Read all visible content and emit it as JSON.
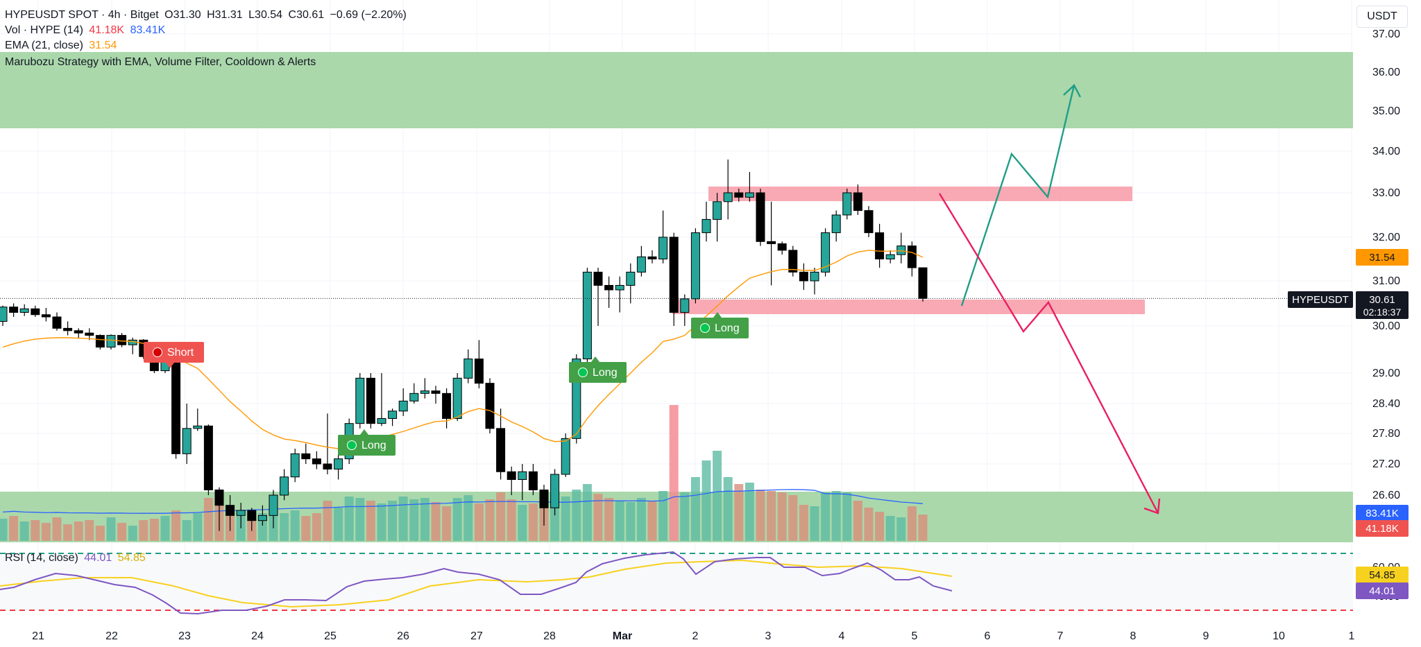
{
  "header": {
    "symbol": "HYPEUSDT SPOT · 4h · Bitget",
    "open": "O31.30",
    "high": "H31.31",
    "low": "L30.54",
    "close": "C30.61",
    "change": "−0.69 (−2.20%)",
    "vol_label": "Vol · HYPE (14)",
    "vol_value": "41.18K",
    "vol_ma": "83.41K",
    "ema_label": "EMA (21, close)",
    "ema_value": "31.54",
    "strategy_label": "Marubozu Strategy with EMA, Volume Filter, Cooldown & Alerts",
    "rsi_label": "RSI (14, close)",
    "rsi_value": "44.01",
    "rsi_ma": "54.85"
  },
  "currency_button": "USDT",
  "price_axis_ticks": [
    "37.00",
    "36.00",
    "35.00",
    "34.00",
    "33.00",
    "32.00",
    "31.00",
    "30.00",
    "29.00",
    "28.40",
    "27.80",
    "27.20",
    "26.60"
  ],
  "time_axis_ticks": [
    "21",
    "22",
    "23",
    "24",
    "25",
    "26",
    "27",
    "28",
    "Mar",
    "2",
    "3",
    "4",
    "5",
    "6",
    "7",
    "8",
    "9",
    "10",
    "1"
  ],
  "labels": {
    "ema_badge": "31.54",
    "price_tag": "HYPEUSDT",
    "price_badge": "30.61",
    "countdown": "02:18:37",
    "vol_ma_badge": "83.41K",
    "vol_badge": "41.18K",
    "rsi_ma_badge": "54.85",
    "rsi_badge": "44.01",
    "rsi_top_tick": "60.00",
    "rsi_bottom_tick": "40.00"
  },
  "signals": [
    {
      "text": "Short",
      "side": "short"
    },
    {
      "text": "Long",
      "side": "long"
    },
    {
      "text": "Long",
      "side": "long"
    },
    {
      "text": "Long",
      "side": "long"
    }
  ],
  "colors": {
    "up": "#26a69a",
    "down": "#000000",
    "ema": "#ff9800",
    "resistance_zone": "#a5d6a7",
    "supply_zone": "#f8a0ab",
    "bull_path": "#1f9e86",
    "bear_path": "#e91e63",
    "rsi": "#7e57c2",
    "rsi_ma": "#f7d11f",
    "volume_ma": "#2962ff"
  },
  "chart_data": {
    "type": "candlestick",
    "symbol": "HYPEUSDT",
    "timeframe": "4h",
    "price_range": [
      25.7,
      37.4
    ],
    "last_price": 30.61,
    "candles": [
      [
        30.1,
        30.45,
        30.0,
        30.42
      ],
      [
        30.42,
        30.5,
        30.2,
        30.3
      ],
      [
        30.3,
        30.48,
        30.22,
        30.38
      ],
      [
        30.38,
        30.45,
        30.2,
        30.25
      ],
      [
        30.25,
        30.4,
        30.1,
        30.2
      ],
      [
        30.2,
        30.3,
        29.9,
        29.95
      ],
      [
        29.95,
        30.1,
        29.8,
        29.9
      ],
      [
        29.9,
        29.95,
        29.75,
        29.85
      ],
      [
        29.85,
        29.95,
        29.7,
        29.8
      ],
      [
        29.8,
        29.82,
        29.5,
        29.55
      ],
      [
        29.55,
        29.82,
        29.5,
        29.8
      ],
      [
        29.8,
        29.85,
        29.55,
        29.6
      ],
      [
        29.6,
        29.75,
        29.4,
        29.7
      ],
      [
        29.7,
        29.72,
        29.3,
        29.35
      ],
      [
        29.35,
        29.4,
        29.0,
        29.05
      ],
      [
        29.05,
        29.35,
        29.0,
        29.3
      ],
      [
        29.3,
        29.35,
        27.3,
        27.4
      ],
      [
        27.4,
        28.4,
        27.2,
        27.9
      ],
      [
        27.9,
        28.3,
        27.85,
        27.95
      ],
      [
        27.95,
        27.98,
        26.6,
        26.7
      ],
      [
        26.7,
        26.75,
        25.9,
        26.4
      ],
      [
        26.4,
        26.6,
        25.9,
        26.2
      ],
      [
        26.2,
        26.45,
        25.95,
        26.3
      ],
      [
        26.3,
        26.35,
        25.9,
        26.1
      ],
      [
        26.1,
        26.4,
        26.0,
        26.2
      ],
      [
        26.2,
        26.7,
        25.95,
        26.6
      ],
      [
        26.6,
        27.1,
        26.5,
        26.95
      ],
      [
        26.95,
        27.5,
        26.85,
        27.4
      ],
      [
        27.4,
        27.6,
        27.2,
        27.3
      ],
      [
        27.3,
        27.45,
        27.1,
        27.2
      ],
      [
        27.2,
        28.2,
        27.0,
        27.1
      ],
      [
        27.1,
        27.4,
        26.9,
        27.3
      ],
      [
        27.3,
        28.1,
        27.2,
        28.0
      ],
      [
        28.0,
        29.0,
        27.9,
        28.9
      ],
      [
        28.9,
        29.0,
        27.9,
        28.0
      ],
      [
        28.0,
        29.0,
        27.95,
        28.1
      ],
      [
        28.1,
        28.3,
        27.95,
        28.25
      ],
      [
        28.25,
        28.7,
        28.15,
        28.45
      ],
      [
        28.45,
        28.8,
        28.4,
        28.6
      ],
      [
        28.6,
        28.9,
        28.5,
        28.65
      ],
      [
        28.65,
        28.75,
        28.4,
        28.6
      ],
      [
        28.6,
        28.7,
        27.9,
        28.1
      ],
      [
        28.1,
        29.0,
        28.05,
        28.9
      ],
      [
        28.9,
        29.5,
        28.8,
        29.3
      ],
      [
        29.3,
        29.7,
        28.7,
        28.8
      ],
      [
        28.8,
        28.9,
        27.8,
        27.9
      ],
      [
        27.9,
        28.3,
        26.9,
        27.05
      ],
      [
        27.05,
        27.15,
        26.6,
        26.9
      ],
      [
        26.9,
        27.2,
        26.5,
        27.05
      ],
      [
        27.05,
        27.2,
        26.6,
        26.7
      ],
      [
        26.7,
        26.8,
        26.0,
        26.35
      ],
      [
        26.35,
        27.1,
        26.2,
        27.0
      ],
      [
        27.0,
        27.8,
        26.95,
        27.7
      ],
      [
        27.7,
        29.4,
        27.6,
        29.3
      ],
      [
        29.3,
        31.3,
        29.2,
        31.2
      ],
      [
        31.2,
        31.3,
        30.0,
        30.9
      ],
      [
        30.9,
        31.1,
        30.4,
        30.8
      ],
      [
        30.8,
        31.1,
        30.3,
        30.9
      ],
      [
        30.9,
        31.4,
        30.5,
        31.2
      ],
      [
        31.2,
        31.8,
        31.1,
        31.55
      ],
      [
        31.55,
        31.7,
        31.4,
        31.5
      ],
      [
        31.5,
        32.6,
        31.4,
        32.0
      ],
      [
        32.0,
        32.1,
        30.0,
        30.3
      ],
      [
        30.3,
        30.7,
        30.0,
        30.6
      ],
      [
        30.6,
        32.2,
        30.5,
        32.1
      ],
      [
        32.1,
        32.8,
        31.9,
        32.4
      ],
      [
        32.4,
        33.0,
        31.9,
        32.8
      ],
      [
        32.8,
        33.8,
        32.4,
        33.0
      ],
      [
        33.0,
        33.1,
        32.8,
        32.9
      ],
      [
        32.9,
        33.5,
        32.8,
        33.0
      ],
      [
        33.0,
        33.1,
        31.8,
        31.9
      ],
      [
        31.9,
        32.8,
        30.9,
        31.85
      ],
      [
        31.85,
        31.9,
        31.6,
        31.7
      ],
      [
        31.7,
        31.8,
        31.1,
        31.2
      ],
      [
        31.2,
        31.4,
        30.8,
        31.0
      ],
      [
        31.0,
        31.3,
        30.7,
        31.2
      ],
      [
        31.2,
        32.2,
        31.1,
        32.1
      ],
      [
        32.1,
        32.6,
        31.9,
        32.5
      ],
      [
        32.5,
        33.1,
        32.4,
        33.0
      ],
      [
        33.0,
        33.2,
        32.5,
        32.6
      ],
      [
        32.6,
        32.7,
        32.0,
        32.1
      ],
      [
        32.1,
        32.3,
        31.3,
        31.5
      ],
      [
        31.5,
        31.7,
        31.4,
        31.6
      ],
      [
        31.6,
        32.1,
        31.4,
        31.8
      ],
      [
        31.8,
        31.9,
        31.1,
        31.3
      ],
      [
        31.3,
        31.31,
        30.54,
        30.61
      ]
    ],
    "ema21": [
      29.55,
      29.62,
      29.68,
      29.72,
      29.74,
      29.75,
      29.75,
      29.74,
      29.73,
      29.71,
      29.7,
      29.68,
      29.67,
      29.63,
      29.57,
      29.53,
      29.34,
      29.21,
      29.1,
      28.88,
      28.66,
      28.44,
      28.25,
      28.05,
      27.88,
      27.77,
      27.69,
      27.66,
      27.62,
      27.57,
      27.53,
      27.5,
      27.55,
      27.67,
      27.69,
      27.73,
      27.78,
      27.84,
      27.91,
      27.98,
      28.04,
      28.05,
      28.13,
      28.24,
      28.3,
      28.26,
      28.15,
      28.03,
      27.94,
      27.83,
      27.7,
      27.64,
      27.65,
      27.79,
      28.1,
      28.36,
      28.58,
      28.79,
      29.0,
      29.23,
      29.43,
      29.67,
      29.72,
      29.8,
      30.01,
      30.22,
      30.44,
      30.67,
      30.87,
      31.06,
      31.14,
      31.21,
      31.26,
      31.26,
      31.24,
      31.24,
      31.32,
      31.43,
      31.57,
      31.66,
      31.7,
      31.68,
      31.68,
      31.69,
      31.65,
      31.54
    ],
    "volume": {
      "last": "41.18K",
      "ma": "83.41K",
      "highlight_bar_index": 62
    },
    "rsi": {
      "period": 14,
      "last": 44.01,
      "ma_last": 54.85,
      "overbought": 70,
      "oversold": 30
    },
    "zones": [
      {
        "name": "resistance",
        "from": 34.6,
        "to": 36.5
      },
      {
        "name": "upper-supply",
        "from": 32.85,
        "to": 33.15
      },
      {
        "name": "lower-support",
        "from": 30.3,
        "to": 30.65
      },
      {
        "name": "volume-band",
        "from": 25.7,
        "to": 26.7
      }
    ],
    "scenarios": {
      "bullish": [
        [
          30.61,
          0
        ],
        [
          33.9,
          7
        ],
        [
          33.0,
          12
        ],
        [
          35.7,
          15
        ]
      ],
      "bearish": [
        [
          33.05,
          0
        ],
        [
          29.9,
          11
        ],
        [
          30.6,
          15
        ],
        [
          26.0,
          30
        ]
      ]
    }
  }
}
